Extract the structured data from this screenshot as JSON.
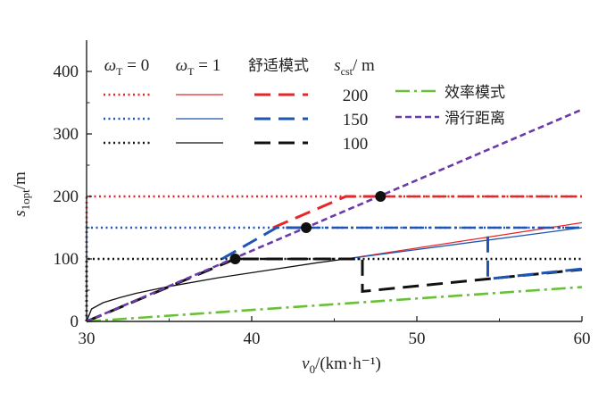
{
  "chart_data": {
    "type": "line",
    "xlabel": {
      "var": "v",
      "sub": "0",
      "unit": "/(km·h⁻¹)"
    },
    "ylabel": {
      "var": "s",
      "sub": "1opt",
      "unit": "/m"
    },
    "xlim": [
      30,
      60
    ],
    "ylim": [
      0,
      450
    ],
    "x_ticks": [
      30,
      40,
      50,
      60
    ],
    "y_ticks": [
      0,
      100,
      200,
      300,
      400
    ],
    "legend_headers": {
      "w0": {
        "sym": "ω",
        "sub": "T",
        "rest": " = 0"
      },
      "w1": {
        "sym": "ω",
        "sub": "T",
        "rest": " = 1"
      },
      "comfort": "舒适模式",
      "scst": {
        "sym": "s",
        "sub": "cst",
        "rest": "/ m"
      }
    },
    "legend_rows": [
      "200",
      "150",
      "100"
    ],
    "legend_extra": [
      "效率模式",
      "滑行距离"
    ],
    "colors": {
      "red": "#e8262a",
      "blue": "#1f56b3",
      "black": "#111111",
      "green": "#6abf3a",
      "purple": "#6a3aa8"
    },
    "series": [
      {
        "name": "ωT=0, scst=200",
        "color": "red",
        "style": "dotted",
        "points": [
          [
            30,
            0
          ],
          [
            30,
            200
          ],
          [
            60,
            200
          ]
        ]
      },
      {
        "name": "ωT=0, scst=150",
        "color": "blue",
        "style": "dotted",
        "points": [
          [
            30,
            0
          ],
          [
            30,
            150
          ],
          [
            60,
            150
          ]
        ]
      },
      {
        "name": "ωT=0, scst=100",
        "color": "black",
        "style": "dotted",
        "points": [
          [
            30,
            0
          ],
          [
            30,
            100
          ],
          [
            60,
            100
          ]
        ]
      },
      {
        "name": "ωT=1, scst=200",
        "color": "red",
        "style": "solid-thin",
        "points": [
          [
            45.7,
            100
          ],
          [
            60,
            158
          ]
        ]
      },
      {
        "name": "ωT=1, scst=150",
        "color": "blue",
        "style": "solid-thin",
        "points": [
          [
            45.7,
            100
          ],
          [
            60,
            150
          ]
        ]
      },
      {
        "name": "ωT=1, scst=100",
        "color": "black",
        "style": "solid-thin",
        "points": [
          [
            30,
            0
          ],
          [
            30.3,
            20
          ],
          [
            31,
            30
          ],
          [
            32,
            38
          ],
          [
            33,
            45
          ],
          [
            35,
            56
          ],
          [
            38,
            70
          ],
          [
            41,
            82
          ],
          [
            44,
            94
          ],
          [
            45.7,
            100
          ]
        ]
      },
      {
        "name": "舒适模式 200",
        "color": "red",
        "style": "dashed",
        "points": [
          [
            41.3,
            150
          ],
          [
            45.7,
            200
          ],
          [
            47.8,
            200
          ]
        ]
      },
      {
        "name": "舒适模式 150",
        "color": "blue",
        "style": "dashed",
        "points": [
          [
            38.2,
            100
          ],
          [
            41.5,
            150
          ],
          [
            43.3,
            150
          ]
        ]
      },
      {
        "name": "舒适模式 100",
        "color": "black",
        "style": "dashed",
        "points": [
          [
            30,
            0
          ],
          [
            39,
            100
          ],
          [
            46.7,
            100
          ],
          [
            46.7,
            48
          ],
          [
            60,
            83
          ]
        ]
      },
      {
        "name": "舒适模式 150 tail",
        "color": "blue",
        "style": "dashed",
        "points": [
          [
            54.3,
            136
          ],
          [
            54.3,
            68
          ],
          [
            60,
            84
          ]
        ]
      },
      {
        "name": "舒适模式 200 dash-dot",
        "color": "red",
        "style": "dashdot",
        "points": [
          [
            47.8,
            200
          ],
          [
            60,
            200
          ]
        ]
      },
      {
        "name": "舒适模式 150 dash-dot",
        "color": "blue",
        "style": "dashdot",
        "points": [
          [
            43.3,
            150
          ],
          [
            60,
            150
          ]
        ]
      },
      {
        "name": "舒适模式 100 dash-dot",
        "color": "black",
        "style": "dashdot",
        "points": [
          [
            39,
            100
          ],
          [
            46.7,
            100
          ]
        ]
      },
      {
        "name": "效率模式",
        "color": "green",
        "style": "dashdot",
        "points": [
          [
            30,
            0
          ],
          [
            60,
            55
          ]
        ]
      },
      {
        "name": "滑行距离",
        "color": "purple",
        "style": "dashed-purple",
        "points": [
          [
            30,
            0
          ],
          [
            60,
            339
          ]
        ]
      }
    ],
    "markers": [
      {
        "x": 39.0,
        "y": 100
      },
      {
        "x": 43.3,
        "y": 150
      },
      {
        "x": 47.8,
        "y": 200
      }
    ]
  }
}
